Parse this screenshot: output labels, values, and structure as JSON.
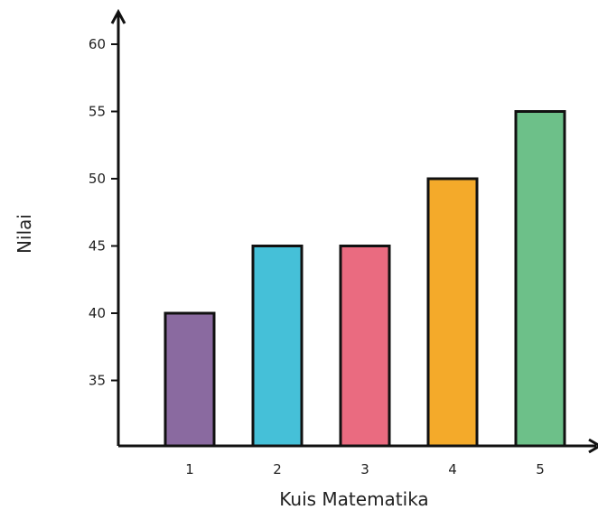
{
  "chart_data": {
    "type": "bar",
    "title": "",
    "xlabel": "Kuis Matematika",
    "ylabel": "Nilai",
    "categories": [
      "1",
      "2",
      "3",
      "4",
      "5"
    ],
    "values": [
      40,
      45,
      45,
      50,
      55
    ],
    "bar_colors": [
      "#8a6aa0",
      "#45c0d8",
      "#ea6b80",
      "#f4aa2a",
      "#6dc089"
    ],
    "yticks": [
      35,
      40,
      45,
      50,
      55,
      60
    ],
    "ylim": [
      30,
      60
    ],
    "grid": false,
    "legend": "none"
  }
}
